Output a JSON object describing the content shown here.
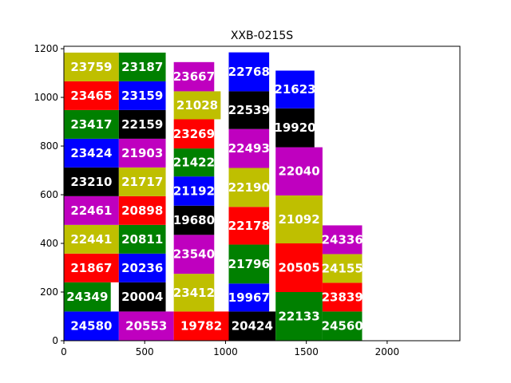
{
  "chart_data": {
    "type": "bar",
    "title": "XXB-0215S",
    "xlim": [
      0,
      2450
    ],
    "ylim": [
      0,
      1210
    ],
    "xticks": [
      0,
      500,
      1000,
      1500,
      2000
    ],
    "yticks": [
      0,
      200,
      400,
      600,
      800,
      1000,
      1200
    ],
    "grid": false,
    "colors": {
      "blue": "#0000ff",
      "magenta": "#bf00bf",
      "red": "#ff0000",
      "black": "#000000",
      "green": "#008000",
      "olive": "#bfbf00"
    },
    "blocks": [
      {
        "label": "24580",
        "x0": 0,
        "x1": 340,
        "y0": 0,
        "y1": 120,
        "color": "#0000ff"
      },
      {
        "label": "24349",
        "x0": 0,
        "x1": 290,
        "y0": 120,
        "y1": 240,
        "color": "#008000"
      },
      {
        "label": "21867",
        "x0": 0,
        "x1": 340,
        "y0": 240,
        "y1": 358,
        "color": "#ff0000"
      },
      {
        "label": "22441",
        "x0": 0,
        "x1": 340,
        "y0": 358,
        "y1": 476,
        "color": "#bfbf00"
      },
      {
        "label": "22461",
        "x0": 0,
        "x1": 340,
        "y0": 476,
        "y1": 594,
        "color": "#bf00bf"
      },
      {
        "label": "23210",
        "x0": 0,
        "x1": 340,
        "y0": 594,
        "y1": 712,
        "color": "#000000"
      },
      {
        "label": "23424",
        "x0": 0,
        "x1": 340,
        "y0": 712,
        "y1": 830,
        "color": "#0000ff"
      },
      {
        "label": "23417",
        "x0": 0,
        "x1": 340,
        "y0": 830,
        "y1": 948,
        "color": "#008000"
      },
      {
        "label": "23465",
        "x0": 0,
        "x1": 340,
        "y0": 948,
        "y1": 1066,
        "color": "#ff0000"
      },
      {
        "label": "23759",
        "x0": 0,
        "x1": 340,
        "y0": 1066,
        "y1": 1184,
        "color": "#bfbf00"
      },
      {
        "label": "20553",
        "x0": 340,
        "x1": 680,
        "y0": 0,
        "y1": 120,
        "color": "#bf00bf"
      },
      {
        "label": "20004",
        "x0": 340,
        "x1": 630,
        "y0": 120,
        "y1": 240,
        "color": "#000000"
      },
      {
        "label": "20236",
        "x0": 340,
        "x1": 630,
        "y0": 240,
        "y1": 358,
        "color": "#0000ff"
      },
      {
        "label": "20811",
        "x0": 340,
        "x1": 630,
        "y0": 358,
        "y1": 476,
        "color": "#008000"
      },
      {
        "label": "20898",
        "x0": 340,
        "x1": 630,
        "y0": 476,
        "y1": 594,
        "color": "#ff0000"
      },
      {
        "label": "21717",
        "x0": 340,
        "x1": 630,
        "y0": 594,
        "y1": 712,
        "color": "#bfbf00"
      },
      {
        "label": "21903",
        "x0": 340,
        "x1": 630,
        "y0": 712,
        "y1": 830,
        "color": "#bf00bf"
      },
      {
        "label": "22159",
        "x0": 340,
        "x1": 630,
        "y0": 830,
        "y1": 948,
        "color": "#000000"
      },
      {
        "label": "23159",
        "x0": 340,
        "x1": 630,
        "y0": 948,
        "y1": 1066,
        "color": "#0000ff"
      },
      {
        "label": "23187",
        "x0": 340,
        "x1": 630,
        "y0": 1066,
        "y1": 1184,
        "color": "#008000"
      },
      {
        "label": "19782",
        "x0": 680,
        "x1": 1020,
        "y0": 0,
        "y1": 120,
        "color": "#ff0000"
      },
      {
        "label": "23412",
        "x0": 680,
        "x1": 930,
        "y0": 120,
        "y1": 275,
        "color": "#bfbf00"
      },
      {
        "label": "23540",
        "x0": 680,
        "x1": 930,
        "y0": 275,
        "y1": 435,
        "color": "#bf00bf"
      },
      {
        "label": "19680",
        "x0": 680,
        "x1": 930,
        "y0": 435,
        "y1": 555,
        "color": "#000000"
      },
      {
        "label": "21192",
        "x0": 680,
        "x1": 930,
        "y0": 555,
        "y1": 675,
        "color": "#0000ff"
      },
      {
        "label": "21422",
        "x0": 680,
        "x1": 930,
        "y0": 675,
        "y1": 790,
        "color": "#008000"
      },
      {
        "label": "23269",
        "x0": 680,
        "x1": 930,
        "y0": 790,
        "y1": 910,
        "color": "#ff0000"
      },
      {
        "label": "21028",
        "x0": 680,
        "x1": 970,
        "y0": 910,
        "y1": 1025,
        "color": "#bfbf00"
      },
      {
        "label": "23667",
        "x0": 680,
        "x1": 930,
        "y0": 1025,
        "y1": 1145,
        "color": "#bf00bf"
      },
      {
        "label": "20424",
        "x0": 1020,
        "x1": 1310,
        "y0": 0,
        "y1": 120,
        "color": "#000000"
      },
      {
        "label": "19967",
        "x0": 1020,
        "x1": 1270,
        "y0": 120,
        "y1": 235,
        "color": "#0000ff"
      },
      {
        "label": "21796",
        "x0": 1020,
        "x1": 1270,
        "y0": 235,
        "y1": 395,
        "color": "#008000"
      },
      {
        "label": "22178",
        "x0": 1020,
        "x1": 1270,
        "y0": 395,
        "y1": 550,
        "color": "#ff0000"
      },
      {
        "label": "22190",
        "x0": 1020,
        "x1": 1270,
        "y0": 550,
        "y1": 710,
        "color": "#bfbf00"
      },
      {
        "label": "22493",
        "x0": 1020,
        "x1": 1270,
        "y0": 710,
        "y1": 870,
        "color": "#bf00bf"
      },
      {
        "label": "22539",
        "x0": 1020,
        "x1": 1270,
        "y0": 870,
        "y1": 1025,
        "color": "#000000"
      },
      {
        "label": "22768",
        "x0": 1020,
        "x1": 1270,
        "y0": 1025,
        "y1": 1185,
        "color": "#0000ff"
      },
      {
        "label": "22133",
        "x0": 1310,
        "x1": 1600,
        "y0": 0,
        "y1": 200,
        "color": "#008000"
      },
      {
        "label": "20505",
        "x0": 1310,
        "x1": 1600,
        "y0": 200,
        "y1": 400,
        "color": "#ff0000"
      },
      {
        "label": "21092",
        "x0": 1310,
        "x1": 1600,
        "y0": 400,
        "y1": 597,
        "color": "#bfbf00"
      },
      {
        "label": "22040",
        "x0": 1310,
        "x1": 1600,
        "y0": 597,
        "y1": 795,
        "color": "#bf00bf"
      },
      {
        "label": "19920",
        "x0": 1310,
        "x1": 1550,
        "y0": 795,
        "y1": 955,
        "color": "#000000"
      },
      {
        "label": "21623",
        "x0": 1310,
        "x1": 1550,
        "y0": 955,
        "y1": 1110,
        "color": "#0000ff"
      },
      {
        "label": "24560",
        "x0": 1600,
        "x1": 1845,
        "y0": 0,
        "y1": 120,
        "color": "#008000"
      },
      {
        "label": "23839",
        "x0": 1600,
        "x1": 1845,
        "y0": 120,
        "y1": 238,
        "color": "#ff0000"
      },
      {
        "label": "24155",
        "x0": 1600,
        "x1": 1845,
        "y0": 238,
        "y1": 356,
        "color": "#bfbf00"
      },
      {
        "label": "24336",
        "x0": 1600,
        "x1": 1845,
        "y0": 356,
        "y1": 474,
        "color": "#bf00bf"
      }
    ]
  }
}
